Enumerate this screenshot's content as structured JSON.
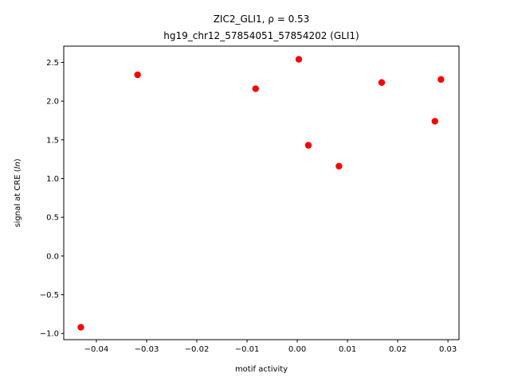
{
  "chart_data": {
    "type": "scatter",
    "title_line1": "ZIC2_GLI1, ρ = 0.53",
    "title_line2": "hg19_chr12_57854051_57854202 (GLI1)",
    "xlabel": "motif activity",
    "ylabel_prefix": "signal at CRE (",
    "ylabel_italic": "ln",
    "ylabel_suffix": ")",
    "xlim": [
      -0.0465,
      0.0322
    ],
    "ylim": [
      -1.08,
      2.71
    ],
    "xticks": [
      -0.04,
      -0.03,
      -0.02,
      -0.01,
      0.0,
      0.01,
      0.02,
      0.03
    ],
    "xtick_labels": [
      "−0.04",
      "−0.03",
      "−0.02",
      "−0.01",
      "0.00",
      "0.01",
      "0.02",
      "0.03"
    ],
    "yticks": [
      -1.0,
      -0.5,
      0.0,
      0.5,
      1.0,
      1.5,
      2.0,
      2.5
    ],
    "ytick_labels": [
      "−1.0",
      "−0.5",
      "0.0",
      "0.5",
      "1.0",
      "1.5",
      "2.0",
      "2.5"
    ],
    "grid": false,
    "legend": "none",
    "marker_color": "#ff0000",
    "points": [
      {
        "x": -0.0431,
        "y": -0.92
      },
      {
        "x": -0.0318,
        "y": 2.34
      },
      {
        "x": -0.0083,
        "y": 2.16
      },
      {
        "x": 0.0003,
        "y": 2.54
      },
      {
        "x": 0.0022,
        "y": 1.43
      },
      {
        "x": 0.0083,
        "y": 1.16
      },
      {
        "x": 0.0168,
        "y": 2.24
      },
      {
        "x": 0.0274,
        "y": 1.74
      },
      {
        "x": 0.0286,
        "y": 2.28
      }
    ]
  }
}
